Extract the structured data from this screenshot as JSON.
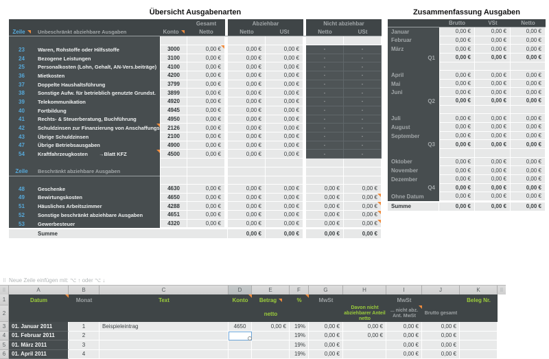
{
  "colors": {
    "accent_orange": "#ef8b3d",
    "accent_green": "#9ccd3b",
    "accent_blue": "#56a9db",
    "dark_panel": "#474d4f",
    "selection_blue": "#68a3d8"
  },
  "icons": {
    "grid_handle": "⠿"
  },
  "left_table": {
    "title": "Übersicht Ausgabenarten",
    "header": {
      "zeile": "Zeile",
      "konto": "Konto",
      "netto": "Netto",
      "ust": "USt",
      "group_gesamt": "Gesamt",
      "group_abziehbar": "Abziehbar",
      "group_nicht_abziehbar": "Nicht abziehbar",
      "section1_label": "Unbeschränkt abziehbare Ausgaben",
      "section2_label": "Beschränkt abziehbare Ausgaben"
    },
    "section1_rows": [
      {
        "zeile": "23",
        "text": "Waren, Rohstoffe oder Hilfsstoffe",
        "konto": "3000",
        "gesamt": "0,00 €",
        "abz_netto": "0,00 €",
        "abz_ust": "0,00 €",
        "na_netto": "-",
        "na_ust": "-",
        "gesamt_comment": true
      },
      {
        "zeile": "24",
        "text": "Bezogene Leistungen",
        "konto": "3100",
        "gesamt": "0,00 €",
        "abz_netto": "0,00 €",
        "abz_ust": "0,00 €",
        "na_netto": "-",
        "na_ust": "-"
      },
      {
        "zeile": "25",
        "text": "Personalkosten (Lohn, Gehalt, AN-Vers.beiträge)",
        "konto": "4100",
        "gesamt": "0,00 €",
        "abz_netto": "0,00 €",
        "abz_ust": "0,00 €",
        "na_netto": "-",
        "na_ust": "-"
      },
      {
        "zeile": "36",
        "text": "Mietkosten",
        "konto": "4200",
        "gesamt": "0,00 €",
        "abz_netto": "0,00 €",
        "abz_ust": "0,00 €",
        "na_netto": "-",
        "na_ust": "-"
      },
      {
        "zeile": "37",
        "text": "Doppelte Haushaltsführung",
        "konto": "3799",
        "gesamt": "0,00 €",
        "abz_netto": "0,00 €",
        "abz_ust": "0,00 €",
        "na_netto": "-",
        "na_ust": "-"
      },
      {
        "zeile": "38",
        "text": "Sonstige Aufw. für betrieblich genutzte Grundst.",
        "konto": "3899",
        "gesamt": "0,00 €",
        "abz_netto": "0,00 €",
        "abz_ust": "0,00 €",
        "na_netto": "-",
        "na_ust": "-"
      },
      {
        "zeile": "39",
        "text": "Telekommunikation",
        "konto": "4920",
        "gesamt": "0,00 €",
        "abz_netto": "0,00 €",
        "abz_ust": "0,00 €",
        "na_netto": "-",
        "na_ust": "-"
      },
      {
        "zeile": "40",
        "text": "Fortbildung",
        "konto": "4945",
        "gesamt": "0,00 €",
        "abz_netto": "0,00 €",
        "abz_ust": "0,00 €",
        "na_netto": "-",
        "na_ust": "-"
      },
      {
        "zeile": "41",
        "text": "Rechts- & Steuerberatung, Buchführung",
        "konto": "4950",
        "gesamt": "0,00 €",
        "abz_netto": "0,00 €",
        "abz_ust": "0,00 €",
        "na_netto": "-",
        "na_ust": "-"
      },
      {
        "zeile": "42",
        "text": "Schuldzinsen zur Finanzierung von Anschaffungs-",
        "konto": "2126",
        "gesamt": "0,00 €",
        "abz_netto": "0,00 €",
        "abz_ust": "0,00 €",
        "na_netto": "-",
        "na_ust": "-",
        "desc_comment": true
      },
      {
        "zeile": "43",
        "text": "Übrige Schuldzinsen",
        "konto": "2100",
        "gesamt": "0,00 €",
        "abz_netto": "0,00 €",
        "abz_ust": "0,00 €",
        "na_netto": "-",
        "na_ust": "-"
      },
      {
        "zeile": "47",
        "text": "Übrige Betriebsausgaben",
        "konto": "4900",
        "gesamt": "0,00 €",
        "abz_netto": "0,00 €",
        "abz_ust": "0,00 €",
        "na_netto": "-",
        "na_ust": "-"
      },
      {
        "zeile": "54",
        "text": "Kraftfahrzeugkosten",
        "note": "→Blatt KFZ",
        "konto": "4500",
        "gesamt": "0,00 €",
        "abz_netto": "0,00 €",
        "abz_ust": "0,00 €",
        "na_netto": "-",
        "na_ust": "-",
        "desc_comment": true
      }
    ],
    "section2_rows": [
      {
        "zeile": "48",
        "text": "Geschenke",
        "konto": "4630",
        "gesamt": "0,00 €",
        "abz_netto": "0,00 €",
        "abz_ust": "0,00 €",
        "na_netto": "0,00 €",
        "na_ust": "0,00 €"
      },
      {
        "zeile": "49",
        "text": "Bewirtungskosten",
        "konto": "4650",
        "gesamt": "0,00 €",
        "abz_netto": "0,00 €",
        "abz_ust": "0,00 €",
        "na_netto": "0,00 €",
        "na_ust": "0,00 €",
        "na_ust_comment": true
      },
      {
        "zeile": "51",
        "text": "Häusliches Arbeitszimmer",
        "konto": "4288",
        "gesamt": "0,00 €",
        "abz_netto": "0,00 €",
        "abz_ust": "0,00 €",
        "na_netto": "0,00 €",
        "na_ust": "0,00 €",
        "na_ust_comment": true
      },
      {
        "zeile": "52",
        "text": "Sonstige beschränkt abziehbare Ausgaben",
        "konto": "4651",
        "gesamt": "0,00 €",
        "abz_netto": "0,00 €",
        "abz_ust": "0,00 €",
        "na_netto": "0,00 €",
        "na_ust": "0,00 €",
        "na_ust_comment": true
      },
      {
        "zeile": "53",
        "text": "Gewerbesteuer",
        "konto": "4320",
        "gesamt": "0,00 €",
        "abz_netto": "0,00 €",
        "abz_ust": "0,00 €",
        "na_netto": "0,00 €",
        "na_ust": "0,00 €",
        "na_ust_comment": true
      }
    ],
    "summe": {
      "label": "Summe",
      "abz_netto": "0,00 €",
      "abz_ust": "0,00 €",
      "na_netto": "0,00 €",
      "na_ust": "0,00 €"
    }
  },
  "right_table": {
    "title": "Zusammenfassung Ausgaben",
    "headers": [
      "Brutto",
      "VSt",
      "Netto"
    ],
    "rows": [
      {
        "label": "Januar",
        "type": "month",
        "values": [
          "0,00 €",
          "0,00 €",
          "0,00 €"
        ]
      },
      {
        "label": "Februar",
        "type": "month",
        "values": [
          "0,00 €",
          "0,00 €",
          "0,00 €"
        ]
      },
      {
        "label": "März",
        "type": "month",
        "values": [
          "0,00 €",
          "0,00 €",
          "0,00 €"
        ]
      },
      {
        "label": "Q1",
        "type": "quarter",
        "values": [
          "0,00 €",
          "0,00 €",
          "0,00 €"
        ]
      },
      {
        "label": "",
        "type": "spacer",
        "values": [
          "",
          "",
          ""
        ]
      },
      {
        "label": "April",
        "type": "month",
        "values": [
          "0,00 €",
          "0,00 €",
          "0,00 €"
        ]
      },
      {
        "label": "Mai",
        "type": "month",
        "values": [
          "0,00 €",
          "0,00 €",
          "0,00 €"
        ]
      },
      {
        "label": "Juni",
        "type": "month",
        "values": [
          "0,00 €",
          "0,00 €",
          "0,00 €"
        ]
      },
      {
        "label": "Q2",
        "type": "quarter",
        "values": [
          "0,00 €",
          "0,00 €",
          "0,00 €"
        ]
      },
      {
        "label": "",
        "type": "spacer",
        "values": [
          "",
          "",
          ""
        ]
      },
      {
        "label": "Juli",
        "type": "month",
        "values": [
          "0,00 €",
          "0,00 €",
          "0,00 €"
        ]
      },
      {
        "label": "August",
        "type": "month",
        "values": [
          "0,00 €",
          "0,00 €",
          "0,00 €"
        ]
      },
      {
        "label": "September",
        "type": "month",
        "values": [
          "0,00 €",
          "0,00 €",
          "0,00 €"
        ]
      },
      {
        "label": "Q3",
        "type": "quarter",
        "values": [
          "0,00 €",
          "0,00 €",
          "0,00 €"
        ]
      },
      {
        "label": "",
        "type": "spacer",
        "values": [
          "",
          "",
          ""
        ]
      },
      {
        "label": "Oktober",
        "type": "month",
        "values": [
          "0,00 €",
          "0,00 €",
          "0,00 €"
        ]
      },
      {
        "label": "November",
        "type": "month",
        "values": [
          "0,00 €",
          "0,00 €",
          "0,00 €"
        ]
      },
      {
        "label": "Dezember",
        "type": "month",
        "values": [
          "0,00 €",
          "0,00 €",
          "0,00 €"
        ]
      },
      {
        "label": "Q4",
        "type": "quarter",
        "values": [
          "0,00 €",
          "0,00 €",
          "0,00 €"
        ]
      },
      {
        "label": "Ohne Datum",
        "type": "month",
        "values": [
          "0,00 €",
          "0,00 €",
          "0,00 €"
        ]
      }
    ],
    "summe": {
      "label": "Summe",
      "values": [
        "0,00 €",
        "0,00 €",
        "0,00 €"
      ]
    }
  },
  "sheet": {
    "hint": "Neue Zeile einfügen mit: ⌥ ↑ oder ⌥ ↓",
    "column_letters": [
      "A",
      "B",
      "C",
      "D",
      "E",
      "F",
      "G",
      "H",
      "I",
      "J",
      "K"
    ],
    "selected_column": "D",
    "header_row1": {
      "num": "1",
      "datum": "Datum",
      "monat": "Monat",
      "text": "Text",
      "konto": "Konto",
      "betrag": "Betrag",
      "pct": "%",
      "mwst_g": "MwSt",
      "mwst_i": "MwSt",
      "beleg": "Beleg Nr."
    },
    "header_row2": {
      "num": "2",
      "netto": "netto",
      "davon": "Davon nicht abziehbarer Anteil netto",
      "nicht_abz": "... nicht abz. Ant. MwSt",
      "brutto_gesamt": "Brutto gesamt"
    },
    "rows": [
      {
        "num": "3",
        "datum": "01. Januar 2011",
        "monat": "1",
        "text": "Beispieleintrag",
        "konto": "4650",
        "betrag": "0,00 €",
        "pct": "19%",
        "mwst": "0,00 €",
        "davon": "0,00 €",
        "na_mwst": "0,00 €",
        "brutto": "0,00 €",
        "beleg": ""
      },
      {
        "num": "4",
        "datum": "01. Februar 2011",
        "monat": "2",
        "text": "",
        "konto": "",
        "betrag": "",
        "pct": "19%",
        "mwst": "0,00 €",
        "davon": "0,00 €",
        "na_mwst": "0,00 €",
        "brutto": "0,00 €",
        "beleg": "",
        "selected": true
      },
      {
        "num": "5",
        "datum": "01. März 2011",
        "monat": "3",
        "text": "",
        "konto": "",
        "betrag": "",
        "pct": "19%",
        "mwst": "0,00 €",
        "davon": "",
        "na_mwst": "0,00 €",
        "brutto": "0,00 €",
        "beleg": ""
      },
      {
        "num": "6",
        "datum": "01. April 2011",
        "monat": "4",
        "text": "",
        "konto": "",
        "betrag": "",
        "pct": "19%",
        "mwst": "0,00 €",
        "davon": "",
        "na_mwst": "0,00 €",
        "brutto": "0,00 €",
        "beleg": ""
      }
    ]
  }
}
